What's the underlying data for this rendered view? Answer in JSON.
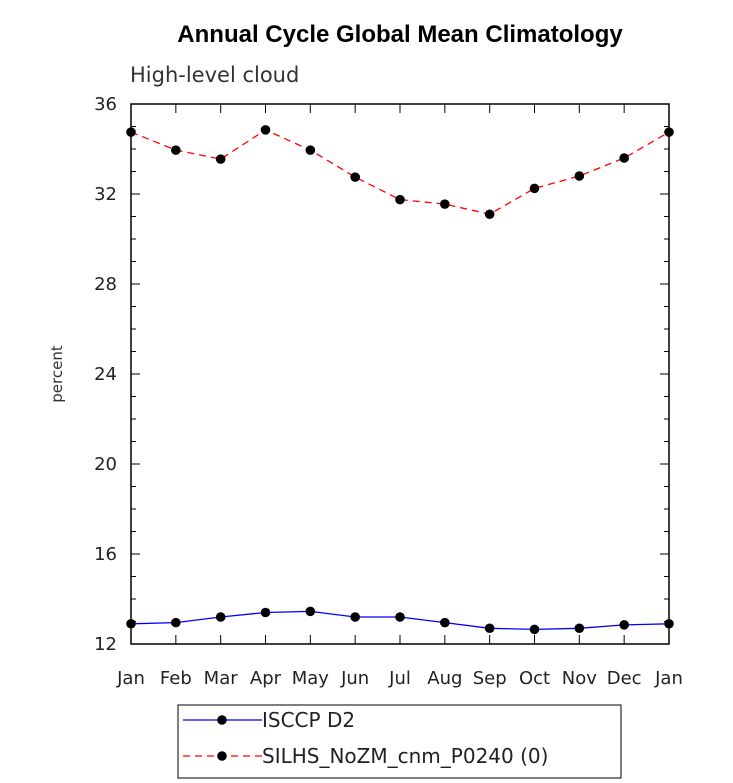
{
  "chart_data": {
    "type": "line",
    "title": "Annual Cycle Global Mean Climatology",
    "subtitle": "High-level cloud",
    "ylabel": "percent",
    "xlabel": "",
    "categories": [
      "Jan",
      "Feb",
      "Mar",
      "Apr",
      "May",
      "Jun",
      "Jul",
      "Aug",
      "Sep",
      "Oct",
      "Nov",
      "Dec",
      "Jan"
    ],
    "ylim": [
      12,
      36
    ],
    "yticks": [
      12,
      16,
      20,
      24,
      28,
      32,
      36
    ],
    "series": [
      {
        "name": "ISCCP D2",
        "color": "#0000ff",
        "style": "solid",
        "values": [
          12.9,
          12.95,
          13.2,
          13.4,
          13.45,
          13.2,
          13.2,
          12.95,
          12.7,
          12.65,
          12.7,
          12.85,
          12.9
        ]
      },
      {
        "name": "SILHS_NoZM_cnm_P0240 (0)",
        "color": "#ff0000",
        "style": "dashed",
        "values": [
          34.75,
          33.95,
          33.55,
          34.85,
          33.95,
          32.75,
          31.75,
          31.55,
          31.1,
          32.25,
          32.8,
          33.6,
          34.75
        ]
      }
    ],
    "legend_position": "bottom",
    "grid": false
  }
}
